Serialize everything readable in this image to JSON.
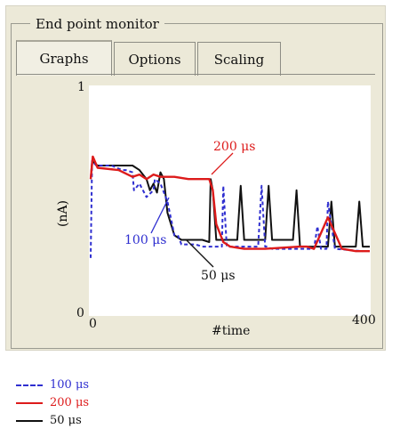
{
  "window": {
    "group_title": "End point monitor",
    "tabs": [
      {
        "label": "Graphs",
        "active": true
      },
      {
        "label": "Options",
        "active": false
      },
      {
        "label": "Scaling",
        "active": false
      }
    ]
  },
  "colors": {
    "s100": "#2f2fd0",
    "s200": "#dd1b1b",
    "s50": "#111111"
  },
  "chart_data": {
    "type": "line",
    "title": "",
    "xlabel": "#time",
    "ylabel": "(nA)",
    "xlim": [
      0,
      400
    ],
    "ylim": [
      0,
      1
    ],
    "x_ticks": [
      "0",
      "400"
    ],
    "y_ticks": [
      "0",
      "1"
    ],
    "series": [
      {
        "name": "100 μs",
        "style": "dashed",
        "color": "#2f2fd0",
        "x": [
          0,
          2,
          8,
          30,
          45,
          50,
          60,
          62,
          70,
          80,
          90,
          92,
          100,
          110,
          120,
          125,
          130,
          150,
          160,
          170,
          180,
          188,
          190,
          195,
          200,
          230,
          240,
          245,
          250,
          252,
          260,
          300,
          320,
          325,
          330,
          338,
          340,
          350,
          390
        ],
        "y": [
          0.25,
          0.68,
          0.66,
          0.66,
          0.64,
          0.64,
          0.63,
          0.55,
          0.58,
          0.52,
          0.55,
          0.6,
          0.58,
          0.5,
          0.35,
          0.35,
          0.31,
          0.31,
          0.3,
          0.3,
          0.3,
          0.3,
          0.57,
          0.3,
          0.3,
          0.3,
          0.3,
          0.57,
          0.3,
          0.3,
          0.29,
          0.29,
          0.29,
          0.39,
          0.29,
          0.29,
          0.5,
          0.29,
          0.28
        ]
      },
      {
        "name": "200 μs",
        "color": "#dd1b1b",
        "x": [
          0,
          3,
          10,
          40,
          60,
          70,
          80,
          90,
          100,
          120,
          140,
          160,
          170,
          175,
          180,
          190,
          200,
          220,
          250,
          300,
          310,
          320,
          330,
          340,
          350,
          360,
          380,
          400
        ],
        "y": [
          0.6,
          0.7,
          0.65,
          0.64,
          0.61,
          0.62,
          0.6,
          0.62,
          0.61,
          0.61,
          0.6,
          0.6,
          0.6,
          0.55,
          0.4,
          0.32,
          0.3,
          0.29,
          0.29,
          0.3,
          0.3,
          0.29,
          0.36,
          0.43,
          0.36,
          0.29,
          0.28,
          0.28
        ]
      },
      {
        "name": "50 μs",
        "color": "#111111",
        "x": [
          0,
          2,
          10,
          30,
          50,
          60,
          70,
          80,
          85,
          90,
          95,
          100,
          105,
          110,
          120,
          130,
          140,
          150,
          160,
          170,
          172,
          175,
          180,
          200,
          210,
          215,
          220,
          240,
          250,
          255,
          260,
          280,
          290,
          295,
          300,
          340,
          345,
          350,
          360,
          380,
          385,
          390,
          400
        ],
        "y": [
          0.6,
          0.68,
          0.66,
          0.66,
          0.66,
          0.66,
          0.64,
          0.6,
          0.55,
          0.58,
          0.54,
          0.63,
          0.6,
          0.45,
          0.35,
          0.33,
          0.33,
          0.33,
          0.33,
          0.32,
          0.6,
          0.55,
          0.33,
          0.33,
          0.33,
          0.57,
          0.33,
          0.33,
          0.33,
          0.57,
          0.33,
          0.33,
          0.33,
          0.55,
          0.3,
          0.3,
          0.5,
          0.3,
          0.3,
          0.3,
          0.5,
          0.3,
          0.3
        ]
      }
    ],
    "annotations": [
      "200 μs",
      "100 μs",
      "50 μs"
    ]
  },
  "legend": [
    {
      "label": "100 μs",
      "color": "#2f2fd0",
      "dash": true
    },
    {
      "label": "200 μs",
      "color": "#dd1b1b",
      "dash": false
    },
    {
      "label": "50 μs",
      "color": "#111111",
      "dash": false
    }
  ]
}
